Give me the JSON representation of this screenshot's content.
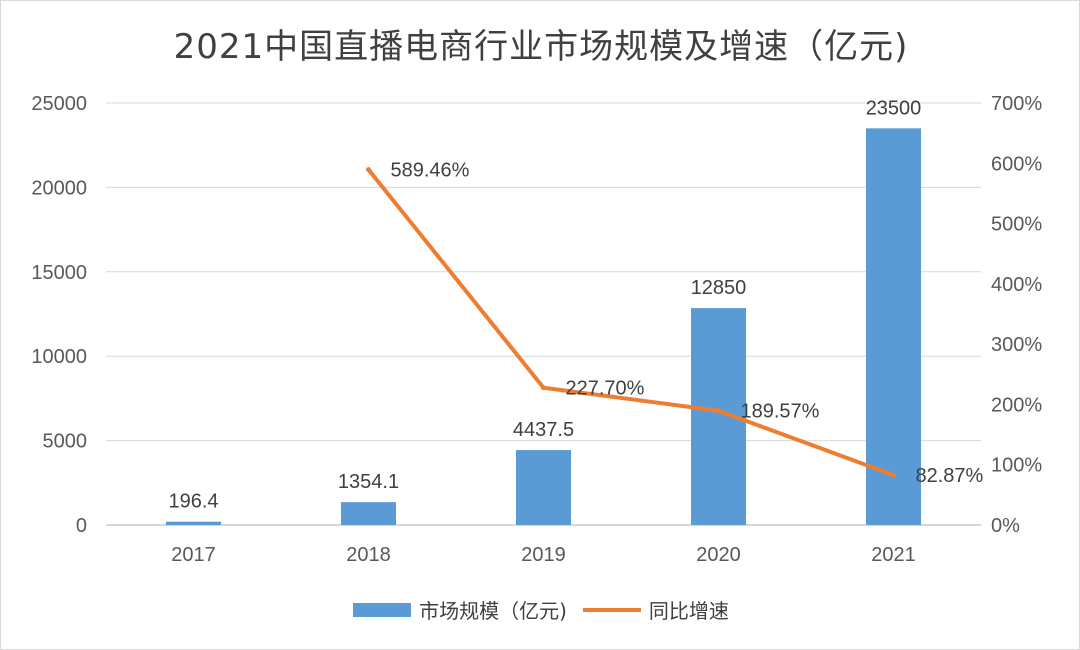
{
  "chart_data": {
    "type": "bar",
    "title": "2021中国直播电商行业市场规模及增速（亿元)",
    "categories": [
      "2017",
      "2018",
      "2019",
      "2020",
      "2021"
    ],
    "series": [
      {
        "name": "市场规模（亿元)",
        "type": "bar",
        "axis": "left",
        "color": "#5b9bd5",
        "values": [
          196.4,
          1354.1,
          4437.5,
          12850,
          23500
        ],
        "labels": [
          "196.4",
          "1354.1",
          "4437.5",
          "12850",
          "23500"
        ]
      },
      {
        "name": "同比增速",
        "type": "line",
        "axis": "right",
        "color": "#ed7d31",
        "values": [
          null,
          589.46,
          227.7,
          189.57,
          82.87
        ],
        "labels": [
          "",
          "589.46%",
          "227.70%",
          "189.57%",
          "82.87%"
        ]
      }
    ],
    "y_left": {
      "ylim": [
        0,
        25000
      ],
      "ticks": [
        "0",
        "5000",
        "10000",
        "15000",
        "20000",
        "25000"
      ]
    },
    "y_right": {
      "ylim": [
        0,
        700
      ],
      "ticks": [
        "0%",
        "100%",
        "200%",
        "300%",
        "400%",
        "500%",
        "600%",
        "700%"
      ]
    },
    "grid": true,
    "legend_position": "bottom"
  }
}
